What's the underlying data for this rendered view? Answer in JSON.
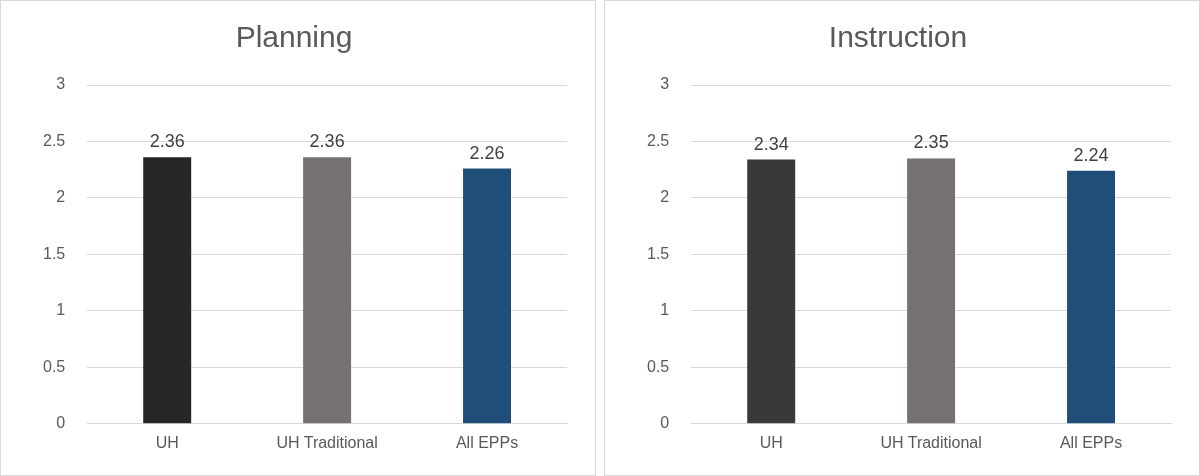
{
  "chart_data": [
    {
      "type": "bar",
      "title": "Planning",
      "categories": [
        "UH",
        "UH Traditional",
        "All EPPs"
      ],
      "values": [
        2.36,
        2.36,
        2.26
      ],
      "colors": [
        "#262626",
        "#767171",
        "#1f4e79"
      ],
      "ylim": [
        0,
        3
      ],
      "yticks": [
        0,
        0.5,
        1,
        1.5,
        2,
        2.5,
        3
      ],
      "grid": "y",
      "data_labels": true,
      "legend": false
    },
    {
      "type": "bar",
      "title": "Instruction",
      "categories": [
        "UH",
        "UH Traditional",
        "All EPPs"
      ],
      "values": [
        2.34,
        2.35,
        2.24
      ],
      "colors": [
        "#3a3838",
        "#767171",
        "#1f4e79"
      ],
      "ylim": [
        0,
        3
      ],
      "yticks": [
        0,
        0.5,
        1,
        1.5,
        2,
        2.5,
        3
      ],
      "grid": "y",
      "data_labels": true,
      "legend": false
    }
  ]
}
